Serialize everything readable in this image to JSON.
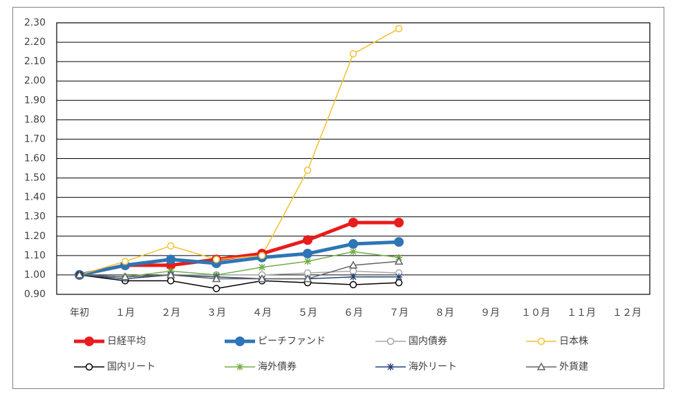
{
  "chart_data": {
    "type": "line",
    "categories": [
      "年初",
      "１月",
      "２月",
      "３月",
      "４月",
      "５月",
      "６月",
      "７月",
      "８月",
      "９月",
      "１０月",
      "１１月",
      "１２月"
    ],
    "series": [
      {
        "name": "日経平均",
        "color": "#e81c1c",
        "marker": "circle-filled",
        "values": [
          1.0,
          1.05,
          1.05,
          1.08,
          1.11,
          1.18,
          1.27,
          1.27,
          null,
          null,
          null,
          null,
          null
        ]
      },
      {
        "name": "ピーチファンド",
        "color": "#2e75b6",
        "marker": "circle-filled",
        "values": [
          1.0,
          1.05,
          1.08,
          1.06,
          1.09,
          1.11,
          1.16,
          1.17,
          null,
          null,
          null,
          null,
          null
        ]
      },
      {
        "name": "国内債券",
        "color": "#a6a6a6",
        "marker": "circle",
        "values": [
          1.0,
          0.99,
          1.0,
          1.0,
          1.0,
          1.01,
          1.02,
          1.01,
          null,
          null,
          null,
          null,
          null
        ]
      },
      {
        "name": "日本株",
        "color": "#f2c12e",
        "marker": "circle",
        "values": [
          1.0,
          1.07,
          1.15,
          1.08,
          1.1,
          1.54,
          2.14,
          2.27,
          null,
          null,
          null,
          null,
          null
        ]
      },
      {
        "name": "国内リート",
        "color": "#000000",
        "marker": "circle",
        "values": [
          1.0,
          0.97,
          0.97,
          0.93,
          0.97,
          0.96,
          0.95,
          0.96,
          null,
          null,
          null,
          null,
          null
        ]
      },
      {
        "name": "海外債券",
        "color": "#70ad47",
        "marker": "star",
        "values": [
          1.0,
          0.99,
          1.02,
          1.0,
          1.04,
          1.07,
          1.12,
          1.09,
          null,
          null,
          null,
          null,
          null
        ]
      },
      {
        "name": "海外リート",
        "color": "#264478",
        "marker": "star",
        "values": [
          1.0,
          0.98,
          1.0,
          0.99,
          0.98,
          0.98,
          0.99,
          0.99,
          null,
          null,
          null,
          null,
          null
        ]
      },
      {
        "name": "外貨建",
        "color": "#636363",
        "marker": "triangle",
        "values": [
          1.0,
          0.99,
          1.0,
          0.98,
          0.98,
          0.98,
          1.05,
          1.07,
          null,
          null,
          null,
          null,
          null
        ]
      }
    ],
    "ylim": [
      0.9,
      2.3
    ],
    "yticks": [
      {
        "value": 0.9,
        "label": "0.90"
      },
      {
        "value": 1.0,
        "label": "1.00"
      },
      {
        "value": 1.1,
        "label": "1.10"
      },
      {
        "value": 1.2,
        "label": "1.20"
      },
      {
        "value": 1.3,
        "label": "1.30"
      },
      {
        "value": 1.4,
        "label": "1.40"
      },
      {
        "value": 1.5,
        "label": "1.50"
      },
      {
        "value": 1.6,
        "label": "1.60"
      },
      {
        "value": 1.7,
        "label": "1.70"
      },
      {
        "value": 1.8,
        "label": "1.80"
      },
      {
        "value": 1.9,
        "label": "1.90"
      },
      {
        "value": 2.0,
        "label": "2.00"
      },
      {
        "value": 2.1,
        "label": "2.10"
      },
      {
        "value": 2.2,
        "label": "2.20"
      },
      {
        "value": 2.3,
        "label": "2.30"
      }
    ],
    "grid": true,
    "legend": "bottom"
  }
}
